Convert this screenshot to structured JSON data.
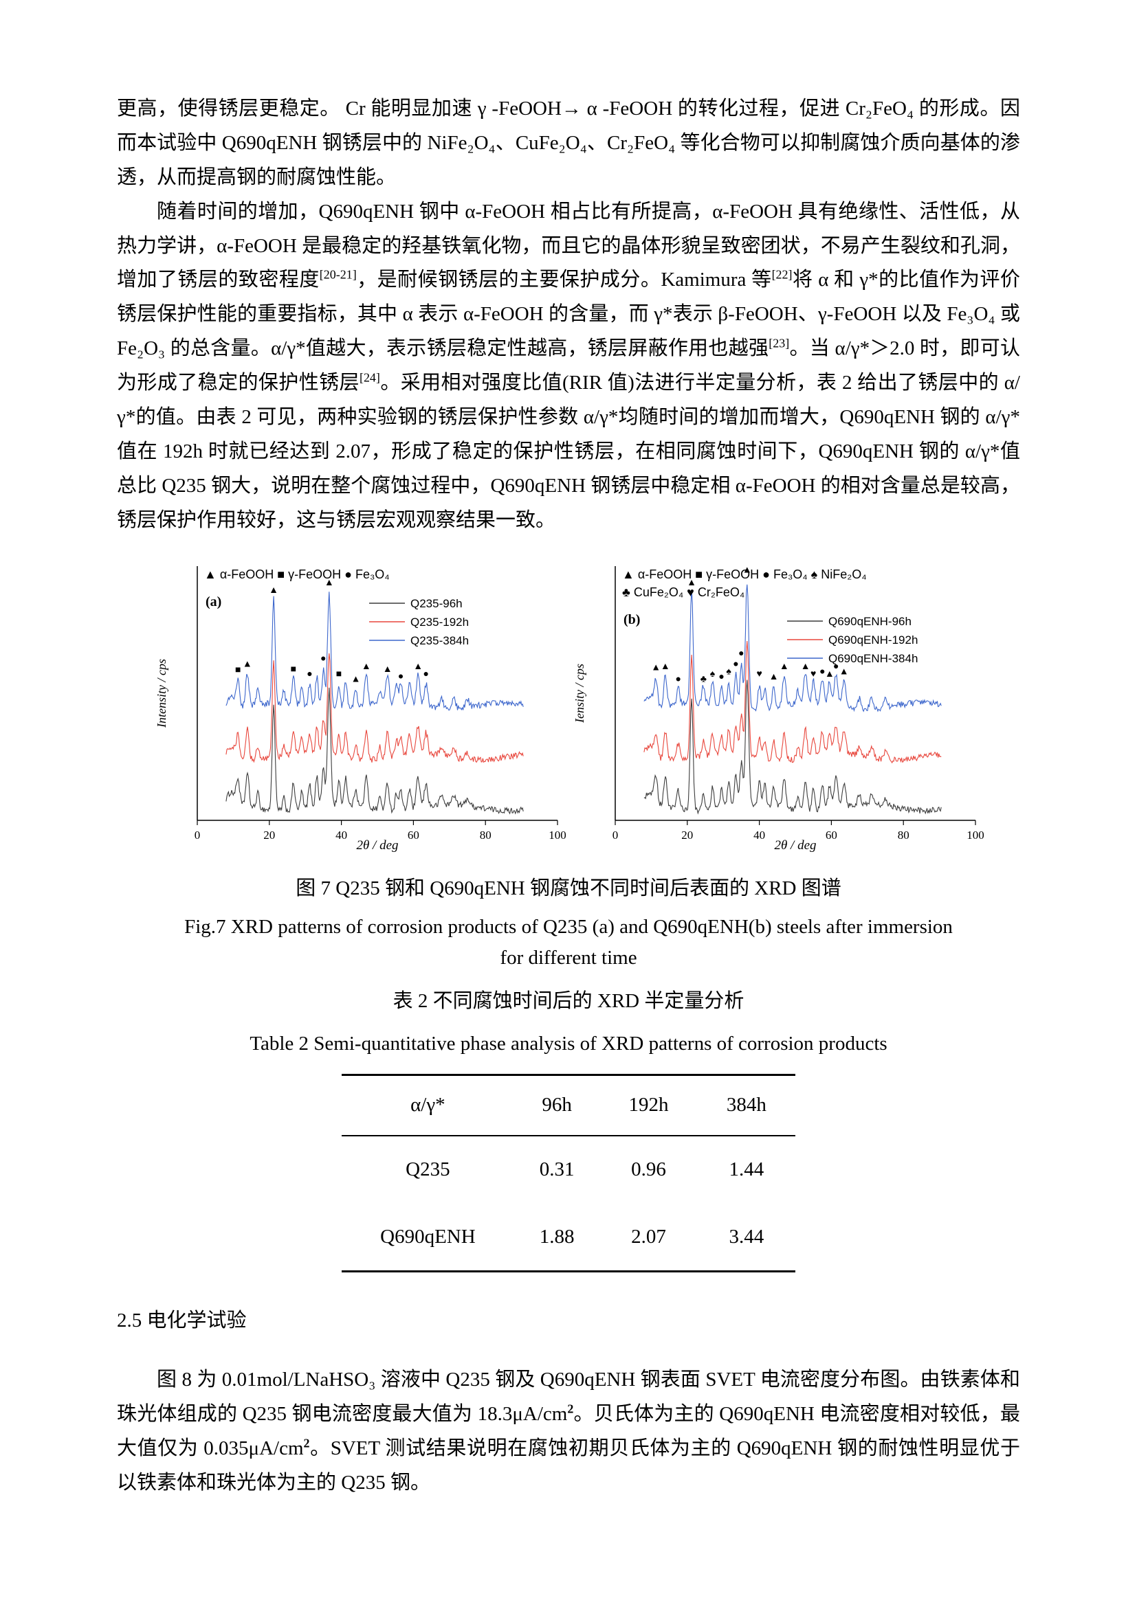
{
  "body": {
    "para1_runs": [
      {
        "t": "更高，使得锈层更稳定。 Cr 能明显加速 γ -FeOOH→ α -FeOOH 的转化过程，促进 Cr₂FeO₄ 的形成。因而本试验中 Q690qENH 钢锈层中的 NiFe₂O₄、CuFe₂O₄、Cr₂FeO₄ 等化合物可以抑制腐蚀介质向基体的渗透，从而提高钢的耐腐蚀性能。"
      }
    ],
    "para2_runs": [
      {
        "t": "随着时间的增加，Q690qENH 钢中 α-FeOOH 相占比有所提高，α-FeOOH 具有绝缘性、活性低，从热力学讲，α-FeOOH 是最稳定的羟基铁氧化物，而且它的晶体形貌呈致密团状，不易产生裂纹和孔洞，增加了锈层的致密程度"
      },
      {
        "t": "[20-21]",
        "sup": true
      },
      {
        "t": "，是耐候钢锈层的主要保护成分。Kamimura 等"
      },
      {
        "t": "[22]",
        "sup": true
      },
      {
        "t": "将 α 和 γ*的比值作为评价锈层保护性能的重要指标，其中 α 表示 α-FeOOH 的含量，而 γ*表示 β-FeOOH、γ-FeOOH 以及 Fe₃O₄ 或 Fe₂O₃ 的总含量。α/γ*值越大，表示锈层稳定性越高，锈层屏蔽作用也越强"
      },
      {
        "t": "[23]",
        "sup": true
      },
      {
        "t": "。当 α/γ*＞2.0 时，即可认为形成了稳定的保护性锈层"
      },
      {
        "t": "[24]",
        "sup": true
      },
      {
        "t": "。采用相对强度比值(RIR 值)法进行半定量分析，表 2 给出了锈层中的 α/γ*的值。由表 2 可见，两种实验钢的锈层保护性参数 α/γ*均随时间的增加而增大，Q690qENH 钢的 α/γ*值在 192h 时就已经达到 2.07，形成了稳定的保护性锈层，在相同腐蚀时间下，Q690qENH 钢的 α/γ*值总比 Q235 钢大，说明在整个腐蚀过程中，Q690qENH 钢锈层中稳定相 α-FeOOH 的相对含量总是较高，锈层保护作用较好，这与锈层宏观观察结果一致。"
      }
    ],
    "section_heading": "2.5 电化学试验",
    "para3_runs": [
      {
        "t": "图 8 为 0.01mol/LNaHSO₃ 溶液中 Q235 钢及 Q690qENH 钢表面 SVET 电流密度分布图。由铁素体和珠光体组成的 Q235 钢电流密度最大值为 18.3μA/cm"
      },
      {
        "t": "2",
        "sup": true,
        "b": true
      },
      {
        "t": "。贝氏体为主的 Q690qENH 电流密度相对较低，最大值仅为 0.035μA/cm"
      },
      {
        "t": "2",
        "sup": true,
        "b": true
      },
      {
        "t": "。SVET 测试结果说明在腐蚀初期贝氏体为主的 Q690qENH 钢的耐蚀性明显优于以铁素体和珠光体为主的 Q235 钢。"
      }
    ]
  },
  "figure_caption": {
    "cn": "图 7 Q235 钢和 Q690qENH 钢腐蚀不同时间后表面的 XRD 图谱",
    "en_line1": "Fig.7 XRD patterns of corrosion products of Q235 (a) and Q690qENH(b) steels after immersion",
    "en_line2": "for different time"
  },
  "table_caption": {
    "cn": "表 2 不同腐蚀时间后的 XRD 半定量分析",
    "en": "Table 2 Semi-quantitative phase analysis of XRD patterns of corrosion products"
  },
  "table": {
    "headers": [
      "α/γ*",
      "96h",
      "192h",
      "384h"
    ],
    "rows": [
      [
        "Q235",
        "0.31",
        "0.96",
        "1.44"
      ],
      [
        "Q690qENH",
        "1.88",
        "2.07",
        "3.44"
      ]
    ]
  },
  "chart_data": [
    {
      "type": "line",
      "panel_label": "(a)",
      "xlabel": "2θ / deg",
      "ylabel": "Intensity / cps",
      "xlim": [
        0,
        100
      ],
      "x_ticks": [
        0,
        20,
        40,
        60,
        80,
        100
      ],
      "grid": false,
      "legend_position": "top-inside",
      "marker_legend_rows": [
        [
          "▲ α-FeOOH",
          "■ γ-FeOOH",
          "● Fe₃O₄"
        ]
      ],
      "series": [
        {
          "name": "Q235-96h",
          "color": "#3c3c3c",
          "offset": 0.05,
          "scale": 1.0
        },
        {
          "name": "Q235-192h",
          "color": "#e8463c",
          "offset": 0.25,
          "scale": 0.92
        },
        {
          "name": "Q235-384h",
          "color": "#3c66cc",
          "offset": 0.45,
          "scale": 1.0
        }
      ],
      "peaks": [
        [
          9.5,
          0.05,
          1.2
        ],
        [
          11.3,
          0.09,
          0.45
        ],
        [
          13.9,
          0.13,
          0.45
        ],
        [
          16.8,
          0.06,
          0.4
        ],
        [
          21.2,
          0.42,
          0.4
        ],
        [
          24.0,
          0.05,
          0.35
        ],
        [
          26.7,
          0.11,
          0.4
        ],
        [
          29.0,
          0.07,
          0.35
        ],
        [
          31.2,
          0.09,
          0.4
        ],
        [
          33.2,
          0.12,
          0.4
        ],
        [
          35.0,
          0.15,
          0.4
        ],
        [
          36.6,
          0.45,
          0.45
        ],
        [
          39.3,
          0.09,
          0.4
        ],
        [
          41.2,
          0.11,
          0.4
        ],
        [
          44.0,
          0.07,
          0.4
        ],
        [
          46.9,
          0.12,
          0.45
        ],
        [
          50.7,
          0.05,
          0.4
        ],
        [
          52.8,
          0.11,
          0.45
        ],
        [
          55.3,
          0.07,
          0.4
        ],
        [
          56.5,
          0.08,
          0.4
        ],
        [
          58.9,
          0.08,
          0.45
        ],
        [
          61.3,
          0.12,
          0.5
        ],
        [
          63.5,
          0.09,
          0.5
        ],
        [
          67.8,
          0.04,
          0.5
        ],
        [
          71.2,
          0.04,
          0.5
        ],
        [
          75.0,
          0.03,
          0.5
        ]
      ],
      "annotations": [
        [
          11.3,
          "■"
        ],
        [
          13.9,
          "▲"
        ],
        [
          21.2,
          "▲"
        ],
        [
          26.7,
          "■"
        ],
        [
          31.2,
          "●"
        ],
        [
          35.0,
          "●"
        ],
        [
          36.6,
          "▲"
        ],
        [
          39.3,
          "■"
        ],
        [
          44.0,
          "▲"
        ],
        [
          46.9,
          "▲"
        ],
        [
          52.8,
          "▲"
        ],
        [
          56.5,
          "●"
        ],
        [
          61.3,
          "▲"
        ],
        [
          63.5,
          "●"
        ]
      ]
    },
    {
      "type": "line",
      "panel_label": "(b)",
      "xlabel": "2θ / deg",
      "ylabel": "Iensity / cps",
      "xlim": [
        0,
        100
      ],
      "x_ticks": [
        0,
        20,
        40,
        60,
        80,
        100
      ],
      "grid": false,
      "legend_position": "top-inside",
      "marker_legend_rows": [
        [
          "▲ α-FeOOH",
          "■ γ-FeOOH",
          "● Fe₃O₄",
          "♠ NiFe₂O₄"
        ],
        [
          "♣ CuFe₂O₄",
          "♥ Cr₂FeO₄"
        ]
      ],
      "series": [
        {
          "name": "Q690qENH-96h",
          "color": "#3c3c3c",
          "offset": 0.05,
          "scale": 1.0
        },
        {
          "name": "Q690qENH-192h",
          "color": "#e8463c",
          "offset": 0.25,
          "scale": 0.92
        },
        {
          "name": "Q690qENH-384h",
          "color": "#3c66cc",
          "offset": 0.45,
          "scale": 1.0
        }
      ],
      "peaks": [
        [
          9.5,
          0.05,
          1.2
        ],
        [
          11.3,
          0.1,
          0.45
        ],
        [
          13.9,
          0.12,
          0.45
        ],
        [
          17.5,
          0.07,
          0.4
        ],
        [
          21.2,
          0.45,
          0.4
        ],
        [
          24.5,
          0.07,
          0.4
        ],
        [
          27.0,
          0.09,
          0.4
        ],
        [
          29.5,
          0.08,
          0.4
        ],
        [
          31.5,
          0.1,
          0.4
        ],
        [
          33.5,
          0.13,
          0.4
        ],
        [
          35.0,
          0.17,
          0.4
        ],
        [
          36.6,
          0.5,
          0.45
        ],
        [
          40.0,
          0.09,
          0.4
        ],
        [
          41.5,
          0.08,
          0.4
        ],
        [
          44.0,
          0.08,
          0.4
        ],
        [
          46.9,
          0.12,
          0.45
        ],
        [
          50.7,
          0.05,
          0.4
        ],
        [
          52.8,
          0.12,
          0.45
        ],
        [
          55.0,
          0.09,
          0.4
        ],
        [
          57.5,
          0.1,
          0.45
        ],
        [
          59.5,
          0.09,
          0.45
        ],
        [
          61.3,
          0.12,
          0.5
        ],
        [
          63.5,
          0.1,
          0.5
        ],
        [
          67.8,
          0.04,
          0.5
        ],
        [
          71.2,
          0.04,
          0.5
        ],
        [
          75.0,
          0.03,
          0.5
        ]
      ],
      "annotations": [
        [
          11.3,
          "▲"
        ],
        [
          13.9,
          "▲"
        ],
        [
          17.5,
          "●"
        ],
        [
          21.2,
          "▲"
        ],
        [
          24.5,
          "♣"
        ],
        [
          27.0,
          "♠"
        ],
        [
          29.5,
          "●"
        ],
        [
          31.5,
          "♠"
        ],
        [
          33.5,
          "●"
        ],
        [
          35.0,
          "●"
        ],
        [
          36.6,
          "▲"
        ],
        [
          40.0,
          "♥"
        ],
        [
          44.0,
          "▲"
        ],
        [
          46.9,
          "▲"
        ],
        [
          52.8,
          "▲"
        ],
        [
          55.0,
          "♥"
        ],
        [
          57.5,
          "●"
        ],
        [
          59.5,
          "▲"
        ],
        [
          61.3,
          "●"
        ],
        [
          63.5,
          "▲"
        ]
      ]
    }
  ]
}
